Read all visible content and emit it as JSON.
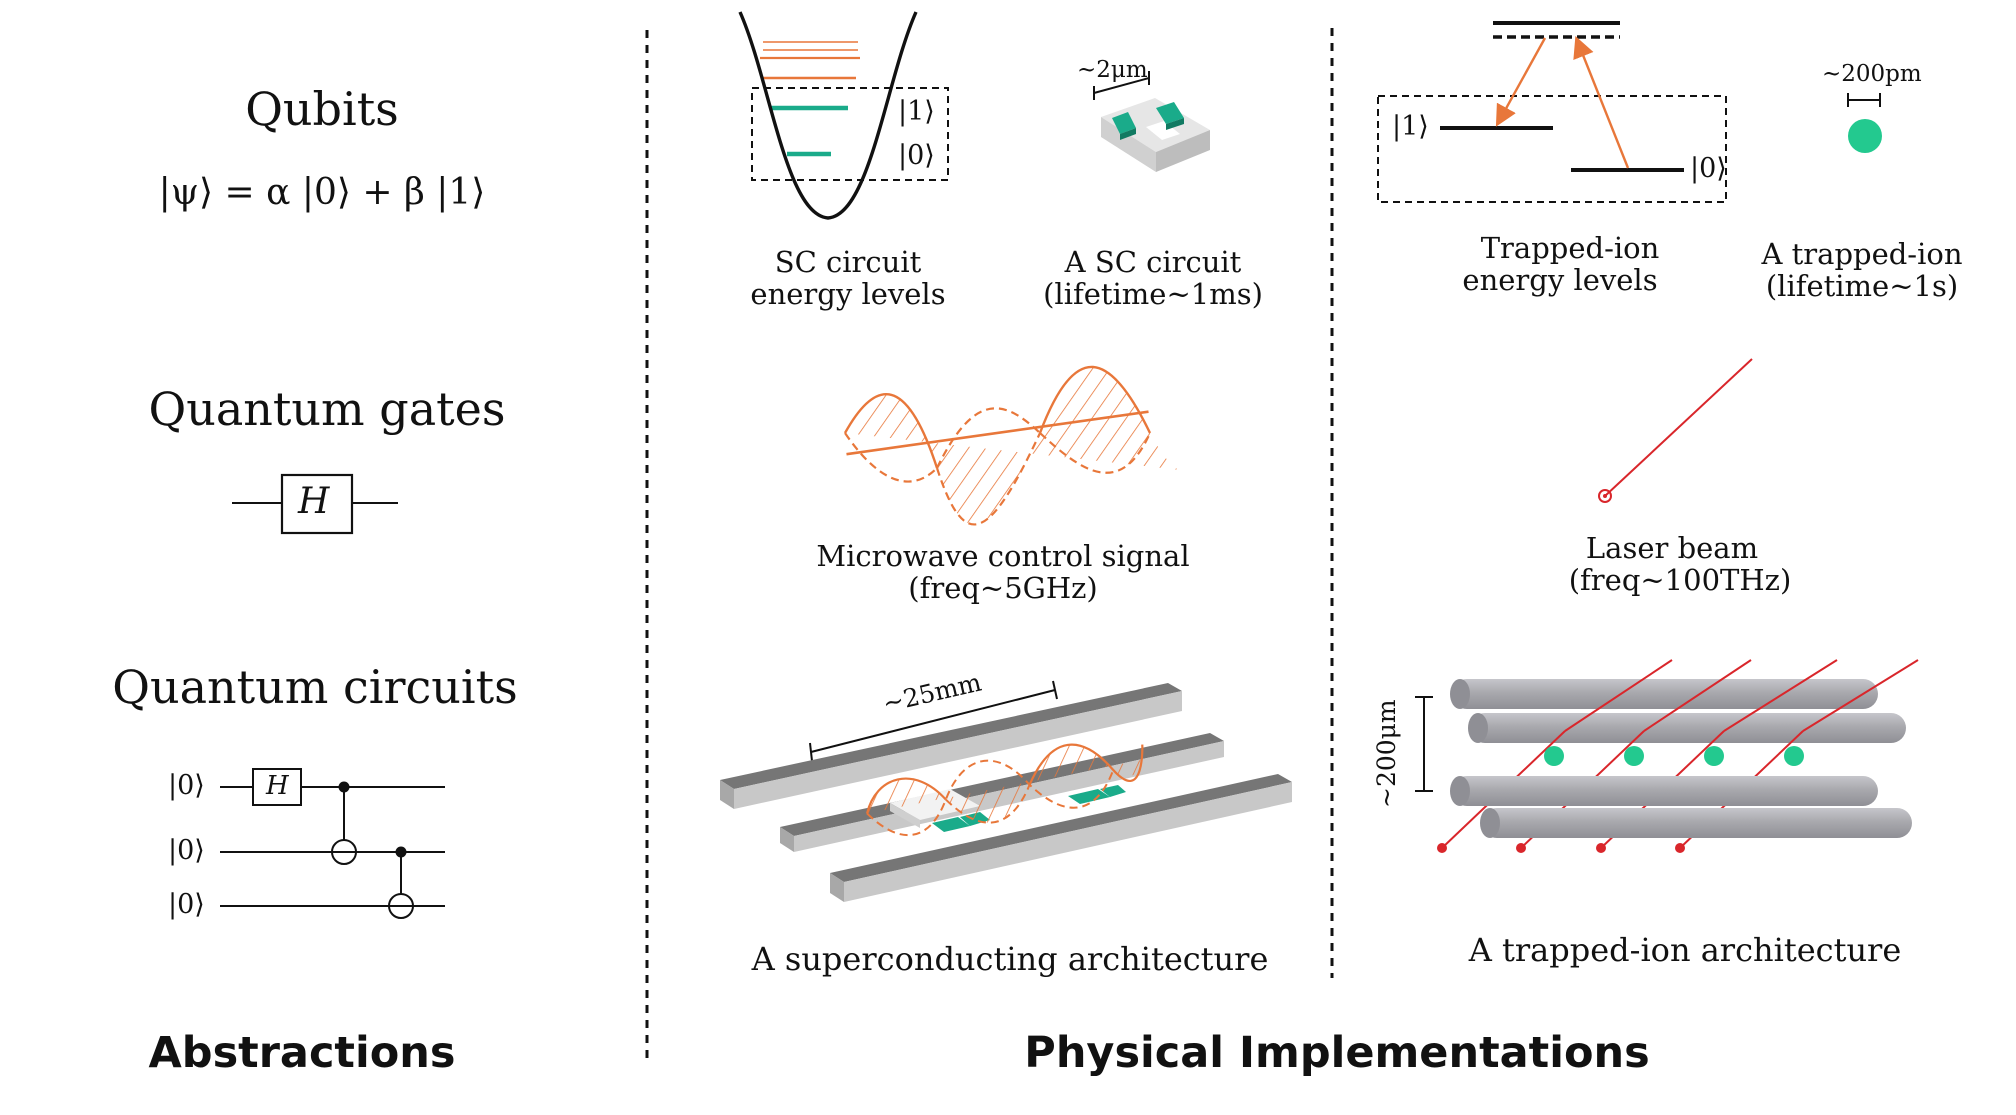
{
  "abstractions": {
    "qubits_title": "Qubits",
    "qubit_state": "|ψ⟩ = α |0⟩ + β |1⟩",
    "gates_title": "Quantum gates",
    "gate_label": "H",
    "circuits_title": "Quantum circuits",
    "circuit_kets": [
      "|0⟩",
      "|0⟩",
      "|0⟩"
    ],
    "circuit_gate": "H",
    "footer": "Abstractions"
  },
  "superconducting": {
    "ket1": "|1⟩",
    "ket0": "|0⟩",
    "levels_caption": [
      "SC circuit",
      "energy levels"
    ],
    "size_label": "~2μm",
    "circuit_caption": [
      "A SC circuit",
      "(lifetime~1ms)"
    ],
    "signal_caption": [
      "Microwave control signal",
      "(freq~5GHz)"
    ],
    "arch_size": "~25mm",
    "arch_caption": "A superconducting architecture"
  },
  "trapped_ion": {
    "ket1": "|1⟩",
    "ket0": "|0⟩",
    "levels_caption": [
      "Trapped-ion",
      "energy levels"
    ],
    "size_label": "~200pm",
    "ion_caption": [
      "A trapped-ion",
      "(lifetime~1s)"
    ],
    "laser_caption": [
      "Laser beam",
      "(freq~100THz)"
    ],
    "arch_size": "~200μm",
    "arch_caption": "A trapped-ion architecture"
  },
  "footer_physical": "Physical Implementations",
  "colors": {
    "orange": "#e8773a",
    "teal": "#1aab8a",
    "ion": "#23c98f",
    "red": "#d9262b",
    "rod": "#a9a9ae",
    "bar_top": "#767676",
    "bar_side": "#c8c8c8"
  }
}
